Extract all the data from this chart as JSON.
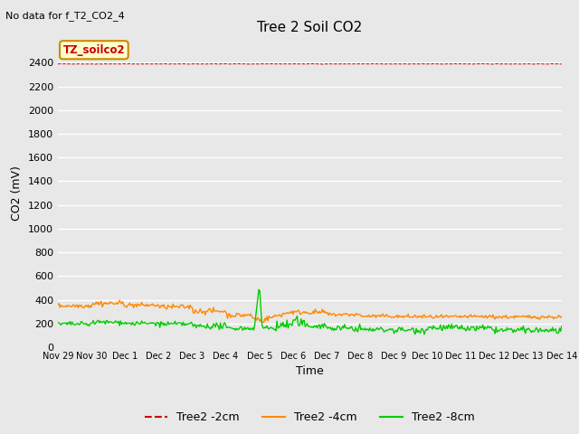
{
  "title": "Tree 2 Soil CO2",
  "no_data_text": "No data for f_T2_CO2_4",
  "xlabel": "Time",
  "ylabel": "CO2 (mV)",
  "ylim": [
    0,
    2600
  ],
  "yticks": [
    0,
    200,
    400,
    600,
    800,
    1000,
    1200,
    1400,
    1600,
    1800,
    2000,
    2200,
    2400
  ],
  "bg_color": "#e8e8e8",
  "plot_bg_color": "#e8e8e8",
  "grid_color": "white",
  "series": {
    "red_flat_value": 2390,
    "orange_base": 330,
    "green_base": 200
  },
  "legend_entries": [
    {
      "label": "Tree2 -2cm",
      "color": "#cc0000",
      "linestyle": "--"
    },
    {
      "label": "Tree2 -4cm",
      "color": "#ff8800",
      "linestyle": "-"
    },
    {
      "label": "Tree2 -8cm",
      "color": "#00cc00",
      "linestyle": "-"
    }
  ],
  "annotation_box": {
    "text": "TZ_soilco2",
    "facecolor": "#ffffcc",
    "edgecolor": "#cc8800",
    "textcolor": "#cc0000"
  },
  "n_points": 500,
  "xstart": 0,
  "xend": 15,
  "x_tick_positions": [
    0,
    1,
    2,
    3,
    4,
    5,
    6,
    7,
    8,
    9,
    10,
    11,
    12,
    13,
    14,
    15
  ],
  "x_tick_labels": [
    "Nov 29",
    "Nov 30",
    "Dec 1",
    "Dec 2",
    "Dec 3",
    "Dec 4",
    "Dec 5",
    "Dec 6",
    "Dec 7",
    "Dec 8",
    "Dec 9",
    "Dec 10",
    "Dec 11",
    "Dec 12",
    "Dec 13",
    "Dec 14"
  ]
}
